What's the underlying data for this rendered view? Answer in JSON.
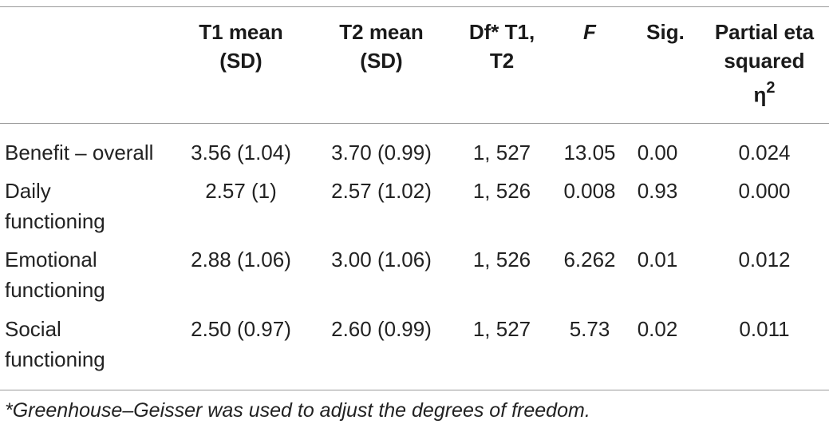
{
  "table": {
    "headers": {
      "t1": [
        "T1 mean",
        "(SD)"
      ],
      "t2": [
        "T2 mean",
        "(SD)"
      ],
      "df": [
        "Df* T1,",
        "T2"
      ],
      "f": "F",
      "sig": "Sig.",
      "eta": [
        "Partial eta",
        "squared"
      ],
      "eta_symbol": "η",
      "eta_exp": "2"
    },
    "rows": [
      {
        "label": [
          "Benefit – overall"
        ],
        "t1": "3.56 (1.04)",
        "t2": "3.70 (0.99)",
        "df": "1, 527",
        "f": "13.05",
        "sig": "0.00",
        "eta": "0.024"
      },
      {
        "label": [
          "Daily",
          "functioning"
        ],
        "t1": "2.57 (1)",
        "t2": "2.57 (1.02)",
        "df": "1, 526",
        "f": "0.008",
        "sig": "0.93",
        "eta": "0.000"
      },
      {
        "label": [
          "Emotional",
          "functioning"
        ],
        "t1": "2.88 (1.06)",
        "t2": "3.00 (1.06)",
        "df": "1, 526",
        "f": "6.262",
        "sig": "0.01",
        "eta": "0.012"
      },
      {
        "label": [
          "Social",
          "functioning"
        ],
        "t1": "2.50 (0.97)",
        "t2": "2.60 (0.99)",
        "df": "1, 527",
        "f": "5.73",
        "sig": "0.02",
        "eta": "0.011"
      }
    ],
    "footnote": "*Greenhouse–Geisser was used to adjust the degrees of freedom."
  }
}
